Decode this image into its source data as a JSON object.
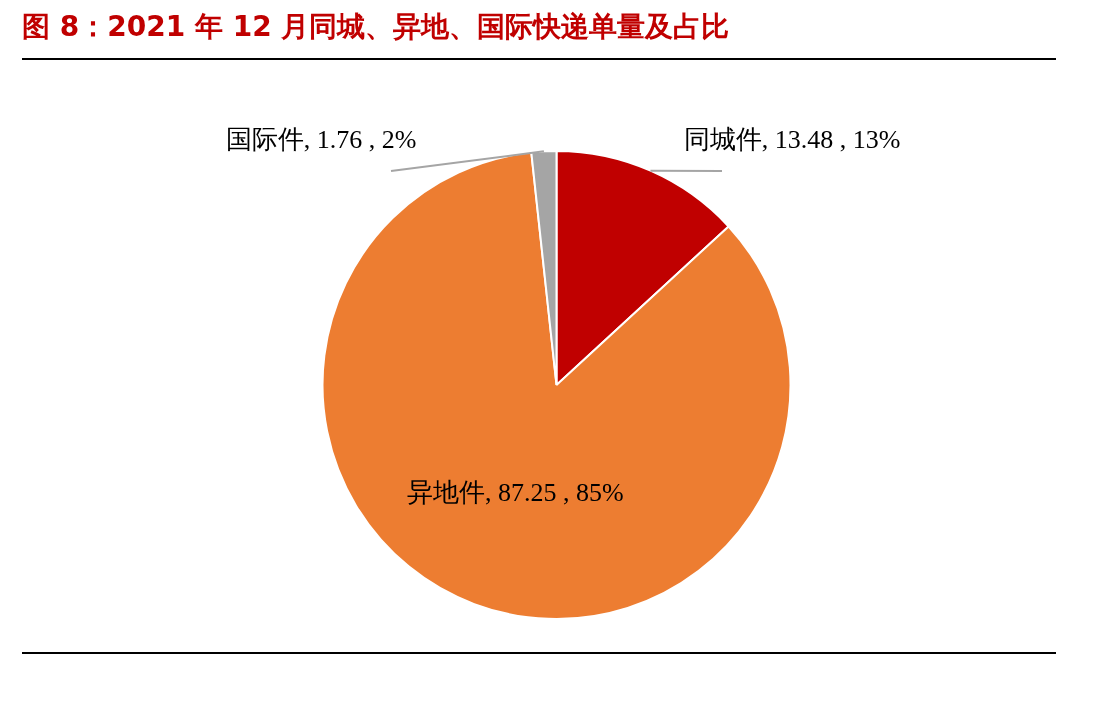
{
  "chart_data": {
    "type": "pie",
    "title": "图 8：2021 年 12 月同城、异地、国际快递单量及占比",
    "categories": [
      "同城件",
      "异地件",
      "国际件"
    ],
    "values": [
      13.48,
      87.25,
      1.76
    ],
    "colors": [
      "#c00000",
      "#ed7d31",
      "#a5a5a5"
    ],
    "value_labels": [
      "13.48 , 13%",
      "87.25 , 85%",
      "1.76 , 2%"
    ],
    "legend": false
  }
}
